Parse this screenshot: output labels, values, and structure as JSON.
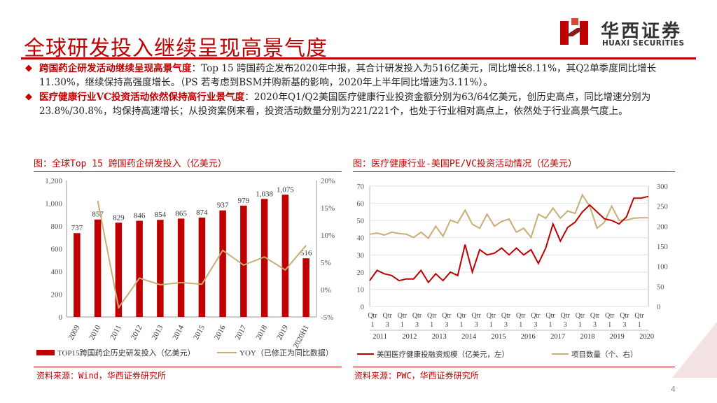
{
  "page": {
    "title": "全球研发投入继续呈现高景气度",
    "logo_cn": "华西证券",
    "logo_en": "HUAXI SECURITIES",
    "page_number": "4",
    "brand_color": "#c00000"
  },
  "bullets": [
    {
      "highlight": "跨国药企研发活动继续呈现高景气度",
      "text": "：Top 15 跨国药企发布2020年中报，其合计研发投入为516亿美元，同比增长8.11%，其Q2单季度同比增长11.30%，继续保持高强度增长。（PS  若考虑到BSM并购新基的影响，2020年上半年同比增速为3.11%）。"
    },
    {
      "highlight": "医疗健康行业VC投资活动依然保持高行业景气度",
      "text": "：2020年Q1/Q2美国医疗健康行业投资金额分别为63/64亿美元，创历史高点，同比增速分别为23.8%/30.8%，均保持高速增长；从投资案例来看，投资活动数量分别为221/221个，也处于行业相对高点上，依然处于行业高景气度上。"
    }
  ],
  "left_panel": {
    "title": "图：全球Top 15 跨国药企研发投入（亿美元）",
    "source": "资料来源：Wind，华西证券研究所"
  },
  "right_panel": {
    "title": "图：医疗健康行业-美国PE/VC投资活动情况（亿美元）",
    "source": "资料来源：PWC，华西证券研究所"
  },
  "chart_data": [
    {
      "type": "bar",
      "categories": [
        "2009",
        "2010",
        "2011",
        "2012",
        "2013",
        "2014",
        "2015",
        "2016",
        "2017",
        "2018",
        "2019",
        "2020H1"
      ],
      "series": [
        {
          "name": "TOP15跨国药企历史研发投入（亿美元）",
          "type": "bar",
          "axis": "left",
          "values": [
            737,
            857,
            829,
            846,
            854,
            865,
            874,
            937,
            979,
            1038,
            1075,
            516
          ],
          "color": "#c00000"
        },
        {
          "name": "YOY（已修正为同比数据）",
          "type": "line",
          "axis": "right",
          "values": [
            null,
            16.3,
            -3.3,
            2.1,
            0.9,
            1.3,
            1.0,
            7.2,
            4.5,
            6.0,
            3.6,
            8.1
          ],
          "color": "#c9ad75"
        }
      ],
      "y_left": {
        "min": 0,
        "max": 1200,
        "ticks": [
          "0",
          "200",
          "400",
          "600",
          "800",
          "1,000",
          "1,200"
        ],
        "tick_values": [
          0,
          200,
          400,
          600,
          800,
          1000,
          1200
        ]
      },
      "y_right": {
        "min": -5,
        "max": 20,
        "ticks": [
          "-5%",
          "0%",
          "5%",
          "10%",
          "15%",
          "20%"
        ],
        "tick_values": [
          -5,
          0,
          5,
          10,
          15,
          20
        ]
      },
      "data_labels": [
        "737",
        "857",
        "829",
        "846",
        "854",
        "865",
        "874",
        "937",
        "979",
        "1,038",
        "1,075",
        "516"
      ],
      "legend_position": "bottom",
      "grid": false
    },
    {
      "type": "line",
      "x_labels": [
        {
          "q": "Qtr",
          "n": "1"
        },
        {
          "q": "Qtr",
          "n": "3"
        },
        {
          "q": "Qtr",
          "n": "1"
        },
        {
          "q": "Qtr",
          "n": "3"
        },
        {
          "q": "Qtr",
          "n": "1"
        },
        {
          "q": "Qtr",
          "n": "3"
        },
        {
          "q": "Qtr",
          "n": "1"
        },
        {
          "q": "Qtr",
          "n": "3"
        },
        {
          "q": "Qtr",
          "n": "1"
        },
        {
          "q": "Qtr",
          "n": "3"
        },
        {
          "q": "Qtr",
          "n": "1"
        },
        {
          "q": "Qtr",
          "n": "3"
        },
        {
          "q": "Qtr",
          "n": "1"
        },
        {
          "q": "Qtr",
          "n": "3"
        },
        {
          "q": "Qtr",
          "n": "1"
        },
        {
          "q": "Qtr",
          "n": "3"
        },
        {
          "q": "Qtr",
          "n": "1"
        },
        {
          "q": "Qtr",
          "n": "3"
        },
        {
          "q": "Qtr",
          "n": "1"
        }
      ],
      "years": [
        "2011",
        "2012",
        "2013",
        "2014",
        "2015",
        "2016",
        "2017",
        "2018",
        "2019",
        "2020"
      ],
      "series": [
        {
          "name": "美国医疗健康投融资规模（亿美元，左）",
          "axis": "left",
          "color": "#c00000",
          "values": [
            15,
            21,
            19,
            18,
            15,
            16,
            16,
            21,
            14,
            19,
            15,
            20,
            18,
            36,
            20,
            33,
            30,
            31,
            34,
            30,
            34,
            30,
            33,
            25,
            34,
            48,
            38,
            46,
            49,
            55,
            59,
            55,
            51,
            50,
            48,
            52,
            63,
            63,
            64
          ]
        },
        {
          "name": "项目数量（个、右）",
          "axis": "right",
          "color": "#c9ad75",
          "values": [
            180,
            183,
            178,
            185,
            182,
            180,
            172,
            185,
            170,
            200,
            175,
            215,
            208,
            240,
            205,
            195,
            230,
            200,
            212,
            218,
            185,
            195,
            172,
            230,
            220,
            245,
            220,
            238,
            232,
            278,
            250,
            195,
            210,
            250,
            215,
            215,
            220,
            221,
            221
          ]
        }
      ],
      "y_left": {
        "min": 0,
        "max": 70,
        "ticks": [
          "0",
          "10",
          "20",
          "30",
          "40",
          "50",
          "60",
          "70"
        ],
        "tick_values": [
          0,
          10,
          20,
          30,
          40,
          50,
          60,
          70
        ]
      },
      "y_right": {
        "min": 0,
        "max": 300,
        "ticks": [
          "0",
          "50",
          "100",
          "150",
          "200",
          "250",
          "300"
        ],
        "tick_values": [
          0,
          50,
          100,
          150,
          200,
          250,
          300
        ]
      },
      "legend_position": "bottom",
      "grid": true
    }
  ]
}
